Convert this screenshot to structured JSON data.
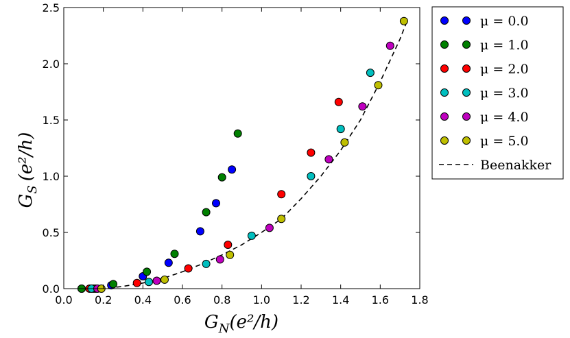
{
  "chart_data": {
    "type": "scatter",
    "x_axis": {
      "label_main": "G",
      "label_sub": "N",
      "label_unit": "(e²/h)",
      "range": [
        0.0,
        1.8
      ],
      "ticks": [
        "0.0",
        "0.2",
        "0.4",
        "0.6",
        "0.8",
        "1.0",
        "1.2",
        "1.4",
        "1.6",
        "1.8"
      ]
    },
    "y_axis": {
      "label_main": "G",
      "label_sub": "S",
      "label_unit": "(e²/h)",
      "range": [
        0.0,
        2.5
      ],
      "ticks": [
        "0.0",
        "0.5",
        "1.0",
        "1.5",
        "2.0",
        "2.5"
      ]
    },
    "grid": false,
    "legend_position": "outside-right",
    "series": [
      {
        "name": "μ = 0.0",
        "label": "μ = 0.0",
        "color": "#0000ff",
        "points": [
          [
            0.09,
            0.0
          ],
          [
            0.15,
            0.0
          ],
          [
            0.24,
            0.03
          ],
          [
            0.4,
            0.11
          ],
          [
            0.53,
            0.23
          ],
          [
            0.69,
            0.51
          ],
          [
            0.77,
            0.76
          ],
          [
            0.85,
            1.06
          ]
        ]
      },
      {
        "name": "μ = 1.0",
        "label": "μ = 1.0",
        "color": "#008000",
        "points": [
          [
            0.09,
            0.0
          ],
          [
            0.16,
            0.0
          ],
          [
            0.25,
            0.04
          ],
          [
            0.42,
            0.15
          ],
          [
            0.56,
            0.31
          ],
          [
            0.72,
            0.68
          ],
          [
            0.8,
            0.99
          ],
          [
            0.88,
            1.38
          ]
        ]
      },
      {
        "name": "μ = 2.0",
        "label": "μ = 2.0",
        "color": "#ff0000",
        "points": [
          [
            0.13,
            0.0
          ],
          [
            0.37,
            0.05
          ],
          [
            0.63,
            0.18
          ],
          [
            0.83,
            0.39
          ],
          [
            1.1,
            0.84
          ],
          [
            1.25,
            1.21
          ],
          [
            1.39,
            1.66
          ]
        ]
      },
      {
        "name": "μ = 3.0",
        "label": "μ = 3.0",
        "color": "#00bfbf",
        "points": [
          [
            0.14,
            0.0
          ],
          [
            0.43,
            0.06
          ],
          [
            0.72,
            0.22
          ],
          [
            0.95,
            0.47
          ],
          [
            1.25,
            1.0
          ],
          [
            1.4,
            1.42
          ],
          [
            1.55,
            1.92
          ]
        ]
      },
      {
        "name": "μ = 4.0",
        "label": "μ = 4.0",
        "color": "#bf00bf",
        "points": [
          [
            0.17,
            0.0
          ],
          [
            0.47,
            0.07
          ],
          [
            0.79,
            0.26
          ],
          [
            1.04,
            0.54
          ],
          [
            1.34,
            1.15
          ],
          [
            1.51,
            1.62
          ],
          [
            1.65,
            2.16
          ]
        ]
      },
      {
        "name": "μ = 5.0",
        "label": "μ = 5.0",
        "color": "#bfbf00",
        "points": [
          [
            0.19,
            0.0
          ],
          [
            0.51,
            0.08
          ],
          [
            0.84,
            0.3
          ],
          [
            1.1,
            0.62
          ],
          [
            1.42,
            1.3
          ],
          [
            1.59,
            1.81
          ],
          [
            1.72,
            2.38
          ]
        ]
      }
    ],
    "reference_curve": {
      "name": "Beenakker",
      "label": "Beenakker",
      "style": "dashed",
      "color": "#000000",
      "points": [
        [
          0.1,
          0.0
        ],
        [
          0.2,
          0.0
        ],
        [
          0.3,
          0.02
        ],
        [
          0.4,
          0.05
        ],
        [
          0.5,
          0.09
        ],
        [
          0.6,
          0.15
        ],
        [
          0.7,
          0.22
        ],
        [
          0.8,
          0.3
        ],
        [
          0.9,
          0.39
        ],
        [
          1.0,
          0.5
        ],
        [
          1.1,
          0.62
        ],
        [
          1.2,
          0.8
        ],
        [
          1.3,
          1.0
        ],
        [
          1.4,
          1.23
        ],
        [
          1.5,
          1.5
        ],
        [
          1.6,
          1.84
        ],
        [
          1.7,
          2.22
        ],
        [
          1.74,
          2.4
        ]
      ]
    }
  }
}
